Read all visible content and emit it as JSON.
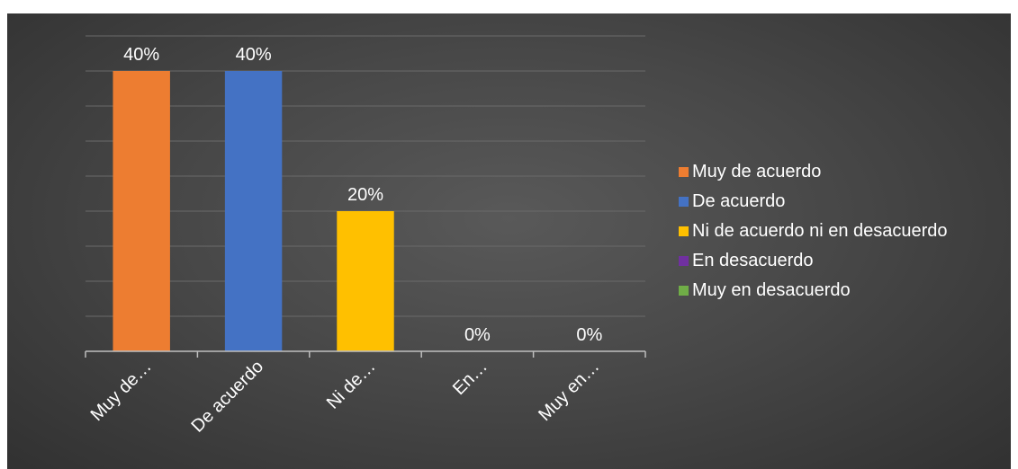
{
  "chart_data": {
    "type": "bar",
    "categories": [
      "Muy de…",
      "De acuerdo",
      "Ni de…",
      "En…",
      "Muy en…"
    ],
    "values": [
      40,
      40,
      20,
      0,
      0
    ],
    "data_labels": [
      "40%",
      "40%",
      "20%",
      "0%",
      "0%"
    ],
    "colors": [
      "#ED7D31",
      "#4472C4",
      "#FFC000",
      "#7030A0",
      "#70AD47"
    ],
    "ylim": [
      0,
      45
    ],
    "grid": true,
    "legend_position": "right",
    "legend": [
      {
        "label": "Muy de acuerdo",
        "color": "#ED7D31"
      },
      {
        "label": "De acuerdo",
        "color": "#4472C4"
      },
      {
        "label": "Ni de acuerdo ni en desacuerdo",
        "color": "#FFC000"
      },
      {
        "label": "En desacuerdo",
        "color": "#7030A0"
      },
      {
        "label": "Muy en desacuerdo",
        "color": "#70AD47"
      }
    ]
  }
}
